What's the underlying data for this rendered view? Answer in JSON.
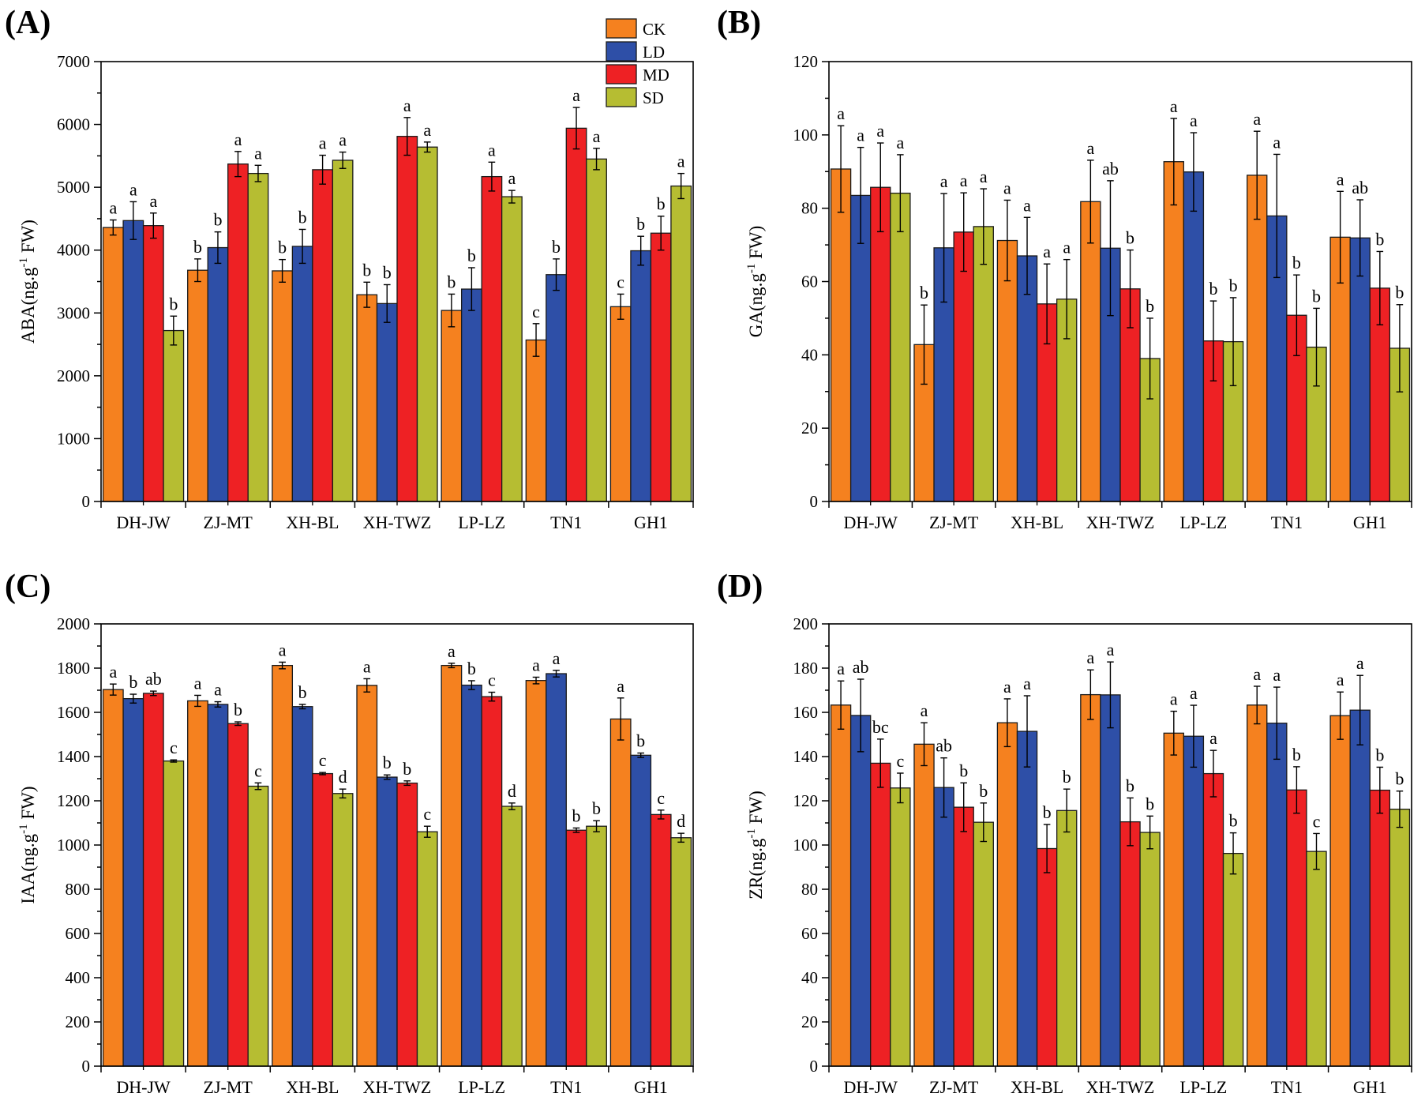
{
  "colors": {
    "CK": "#f5811f",
    "LD": "#2e4fa7",
    "MD": "#ee2124",
    "SD": "#b6bd32"
  },
  "legend": [
    "CK",
    "LD",
    "MD",
    "SD"
  ],
  "chart_data": [
    {
      "panel": "(A)",
      "type": "bar",
      "ylabel": "ABA(ng.g",
      "ylabel_sup": "-1",
      "ylabel_tail": " FW)",
      "ylim": [
        0,
        7000
      ],
      "yticks": [
        0,
        1000,
        2000,
        3000,
        4000,
        5000,
        6000,
        7000
      ],
      "categories": [
        "DH-JW",
        "ZJ-MT",
        "XH-BL",
        "XH-TWZ",
        "LP-LZ",
        "TN1",
        "GH1"
      ],
      "series": [
        {
          "name": "CK",
          "values": [
            4360,
            3680,
            3670,
            3290,
            3040,
            2570,
            3100
          ],
          "errors": [
            120,
            180,
            180,
            200,
            260,
            260,
            200
          ],
          "labels": [
            "a",
            "b",
            "b",
            "b",
            "b",
            "c",
            "c"
          ]
        },
        {
          "name": "LD",
          "values": [
            4470,
            4040,
            4060,
            3150,
            3380,
            3610,
            3990
          ],
          "errors": [
            300,
            250,
            270,
            300,
            340,
            250,
            230
          ],
          "labels": [
            "a",
            "b",
            "b",
            "b",
            "b",
            "b",
            "b"
          ]
        },
        {
          "name": "MD",
          "values": [
            4390,
            5370,
            5280,
            5810,
            5170,
            5940,
            4270
          ],
          "errors": [
            200,
            200,
            230,
            300,
            230,
            330,
            270
          ],
          "labels": [
            "a",
            "a",
            "a",
            "a",
            "a",
            "a",
            "b"
          ]
        },
        {
          "name": "SD",
          "values": [
            2720,
            5220,
            5430,
            5640,
            4850,
            5450,
            5020
          ],
          "errors": [
            230,
            130,
            130,
            80,
            100,
            170,
            200
          ],
          "labels": [
            "b",
            "a",
            "a",
            "a",
            "a",
            "a",
            "a"
          ]
        }
      ]
    },
    {
      "panel": "(B)",
      "type": "bar",
      "ylabel": "GA(ng.g",
      "ylabel_sup": "-1",
      "ylabel_tail": " FW)",
      "ylim": [
        0,
        120
      ],
      "yticks": [
        0,
        20,
        40,
        60,
        80,
        100,
        120
      ],
      "categories": [
        "DH-JW",
        "ZJ-MT",
        "XH-BL",
        "XH-TWZ",
        "LP-LZ",
        "TN1",
        "GH1"
      ],
      "series": [
        {
          "name": "CK",
          "values": [
            90.7,
            42.8,
            71.2,
            81.8,
            92.7,
            89.0,
            72.1
          ],
          "errors": [
            11.8,
            10.8,
            11.0,
            11.3,
            11.8,
            12.0,
            12.5
          ],
          "labels": [
            "a",
            "b",
            "a",
            "a",
            "a",
            "a",
            "a"
          ]
        },
        {
          "name": "LD",
          "values": [
            83.5,
            69.2,
            67.0,
            69.1,
            89.9,
            77.9,
            71.9
          ],
          "errors": [
            13.1,
            14.8,
            10.5,
            18.4,
            10.7,
            16.8,
            10.4
          ],
          "labels": [
            "a",
            "a",
            "a",
            "ab",
            "a",
            "a",
            "ab"
          ]
        },
        {
          "name": "MD",
          "values": [
            85.7,
            73.5,
            53.9,
            58.0,
            43.8,
            50.8,
            58.2
          ],
          "errors": [
            12.1,
            10.7,
            10.9,
            10.6,
            10.9,
            11.0,
            10.0
          ],
          "labels": [
            "a",
            "a",
            "a",
            "b",
            "b",
            "b",
            "b"
          ]
        },
        {
          "name": "SD",
          "values": [
            84.1,
            75.0,
            55.2,
            39.0,
            43.6,
            42.1,
            41.8
          ],
          "errors": [
            10.5,
            10.3,
            10.8,
            11.0,
            12.0,
            10.6,
            11.9
          ],
          "labels": [
            "a",
            "a",
            "a",
            "b",
            "b",
            "b",
            "b"
          ]
        }
      ]
    },
    {
      "panel": "(C)",
      "type": "bar",
      "ylabel": "IAA(ng.g",
      "ylabel_sup": "-1",
      "ylabel_tail": " FW)",
      "ylim": [
        0,
        2000
      ],
      "yticks": [
        0,
        200,
        400,
        600,
        800,
        1000,
        1200,
        1400,
        1600,
        1800,
        2000
      ],
      "categories": [
        "DH-JW",
        "ZJ-MT",
        "XH-BL",
        "XH-TWZ",
        "LP-LZ",
        "TN1",
        "GH1"
      ],
      "series": [
        {
          "name": "CK",
          "values": [
            1703,
            1652,
            1812,
            1722,
            1812,
            1744,
            1570
          ],
          "errors": [
            25,
            25,
            15,
            30,
            10,
            15,
            95
          ],
          "labels": [
            "a",
            "a",
            "a",
            "a",
            "a",
            "a",
            "a"
          ]
        },
        {
          "name": "LD",
          "values": [
            1662,
            1636,
            1626,
            1307,
            1723,
            1775,
            1406
          ],
          "errors": [
            20,
            12,
            10,
            10,
            20,
            15,
            10
          ],
          "labels": [
            "b",
            "a",
            "b",
            "b",
            "b",
            "a",
            "b"
          ]
        },
        {
          "name": "MD",
          "values": [
            1686,
            1549,
            1323,
            1280,
            1671,
            1067,
            1138
          ],
          "errors": [
            10,
            8,
            5,
            10,
            20,
            10,
            20
          ],
          "labels": [
            "ab",
            "b",
            "c",
            "b",
            "c",
            "b",
            "c"
          ]
        },
        {
          "name": "SD",
          "values": [
            1380,
            1266,
            1233,
            1060,
            1175,
            1085,
            1033
          ],
          "errors": [
            5,
            15,
            20,
            25,
            15,
            25,
            20
          ],
          "labels": [
            "c",
            "c",
            "d",
            "c",
            "d",
            "b",
            "d"
          ]
        }
      ]
    },
    {
      "panel": "(D)",
      "type": "bar",
      "ylabel": "ZR(ng.g",
      "ylabel_sup": "-1",
      "ylabel_tail": " FW)",
      "ylim": [
        0,
        200
      ],
      "yticks": [
        0,
        20,
        40,
        60,
        80,
        100,
        120,
        140,
        160,
        180,
        200
      ],
      "categories": [
        "DH-JW",
        "ZJ-MT",
        "XH-BL",
        "XH-TWZ",
        "LP-LZ",
        "TN1",
        "GH1"
      ],
      "series": [
        {
          "name": "CK",
          "values": [
            163.3,
            145.6,
            155.3,
            168.0,
            150.6,
            163.3,
            158.5
          ],
          "errors": [
            10.9,
            9.7,
            10.8,
            11.2,
            9.9,
            8.5,
            10.7
          ],
          "labels": [
            "a",
            "a",
            "a",
            "a",
            "a",
            "a",
            "a"
          ]
        },
        {
          "name": "LD",
          "values": [
            158.6,
            126.0,
            151.4,
            167.9,
            149.2,
            155.1,
            161.0
          ],
          "errors": [
            16.4,
            13.4,
            16.1,
            14.9,
            14.0,
            16.3,
            15.7
          ],
          "labels": [
            "ab",
            "ab",
            "a",
            "a",
            "a",
            "a",
            "a"
          ]
        },
        {
          "name": "MD",
          "values": [
            137.0,
            117.1,
            98.4,
            110.5,
            132.3,
            124.9,
            124.8
          ],
          "errors": [
            10.9,
            11.0,
            10.9,
            10.8,
            10.5,
            10.5,
            10.4
          ],
          "labels": [
            "bc",
            "b",
            "b",
            "b",
            "a",
            "b",
            "b"
          ]
        },
        {
          "name": "SD",
          "values": [
            125.8,
            110.3,
            115.6,
            105.7,
            96.2,
            97.1,
            116.2
          ],
          "errors": [
            6.7,
            8.7,
            9.7,
            7.4,
            9.3,
            8.1,
            8.2
          ],
          "labels": [
            "c",
            "b",
            "b",
            "b",
            "b",
            "c",
            "b"
          ]
        }
      ]
    }
  ]
}
